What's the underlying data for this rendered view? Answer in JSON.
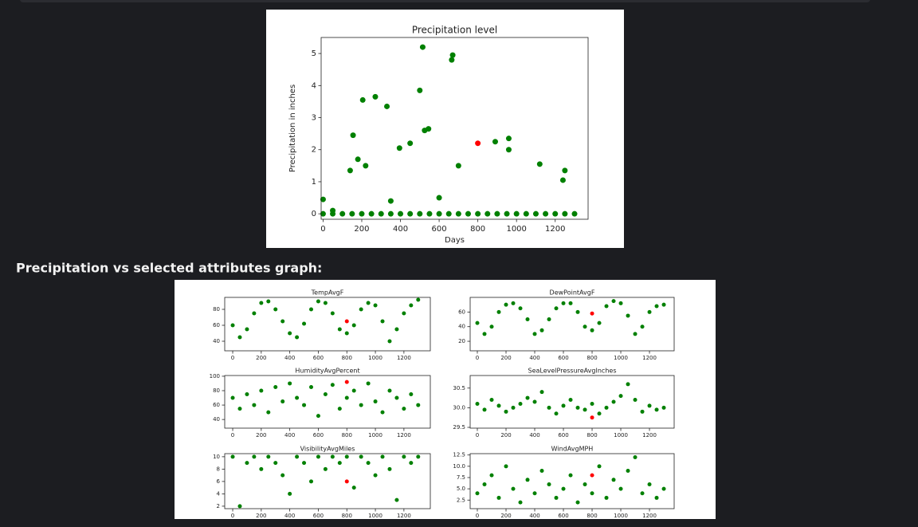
{
  "heading": "Precipitation vs selected attributes graph:",
  "chart_data": [
    {
      "type": "scatter",
      "title": "Precipitation level",
      "x_label": "Days",
      "y_label": "Precipitation in inches",
      "xlim": [
        -10,
        1370
      ],
      "ylim": [
        -0.17,
        5.5
      ],
      "xticks": [
        0,
        200,
        400,
        600,
        800,
        1000,
        1200
      ],
      "yticks": [
        0,
        1,
        2,
        3,
        4,
        5
      ],
      "series": [
        {
          "color": "#008000",
          "x": [
            0,
            140,
            155,
            205,
            270,
            330,
            395,
            450,
            500,
            515,
            525,
            545,
            670,
            665,
            890,
            960,
            960,
            1120,
            1240,
            1250,
            700,
            600,
            350,
            180,
            220,
            50,
            0,
            50,
            100,
            150,
            200,
            250,
            300,
            350,
            400,
            450,
            500,
            550,
            600,
            650,
            700,
            750,
            800,
            850,
            900,
            950,
            1000,
            1050,
            1100,
            1150,
            1200,
            1250,
            1300
          ],
          "values": [
            0.45,
            1.35,
            2.45,
            3.55,
            3.65,
            3.35,
            2.05,
            2.2,
            3.85,
            5.2,
            2.6,
            2.65,
            4.95,
            4.8,
            2.25,
            2.35,
            2.0,
            1.55,
            1.05,
            1.35,
            1.5,
            0.5,
            0.4,
            1.7,
            1.5,
            0.1,
            0,
            0,
            0,
            0,
            0,
            0,
            0,
            0,
            0,
            0,
            0,
            0,
            0,
            0,
            0,
            0,
            0,
            0,
            0,
            0,
            0,
            0,
            0,
            0,
            0,
            0,
            0
          ]
        },
        {
          "color": "#ff0000",
          "x": [
            800
          ],
          "values": [
            2.2
          ]
        }
      ]
    },
    {
      "type": "scatter",
      "title": "TempAvgF",
      "xlim": [
        -56,
        1385
      ],
      "ylim": [
        28,
        95
      ],
      "xticks": [
        0,
        200,
        400,
        600,
        800,
        1000,
        1200
      ],
      "yticks": [
        40,
        60,
        80
      ],
      "series": [
        {
          "color": "#008000",
          "x": [
            0,
            50,
            100,
            150,
            200,
            250,
            300,
            350,
            400,
            450,
            500,
            550,
            600,
            650,
            700,
            750,
            800,
            850,
            900,
            950,
            1000,
            1050,
            1100,
            1150,
            1200,
            1250,
            1300
          ],
          "values": [
            60,
            45,
            55,
            75,
            88,
            90,
            80,
            65,
            50,
            45,
            62,
            80,
            90,
            88,
            75,
            55,
            50,
            60,
            80,
            88,
            85,
            65,
            40,
            55,
            75,
            85,
            92
          ]
        },
        {
          "color": "#ff0000",
          "x": [
            800
          ],
          "values": [
            65
          ]
        }
      ]
    },
    {
      "type": "scatter",
      "title": "DewPointAvgF",
      "xlim": [
        -50,
        1372
      ],
      "ylim": [
        7,
        80
      ],
      "xticks": [
        0,
        200,
        400,
        600,
        800,
        1000,
        1200
      ],
      "yticks": [
        20,
        40,
        60
      ],
      "series": [
        {
          "color": "#008000",
          "x": [
            0,
            50,
            100,
            150,
            200,
            250,
            300,
            350,
            400,
            450,
            500,
            550,
            600,
            650,
            700,
            750,
            800,
            850,
            900,
            950,
            1000,
            1050,
            1100,
            1150,
            1200,
            1250,
            1300
          ],
          "values": [
            45,
            30,
            40,
            60,
            70,
            72,
            65,
            50,
            30,
            35,
            50,
            65,
            72,
            72,
            60,
            40,
            35,
            45,
            68,
            75,
            72,
            55,
            30,
            40,
            60,
            68,
            70
          ]
        },
        {
          "color": "#ff0000",
          "x": [
            800
          ],
          "values": [
            58
          ]
        }
      ]
    },
    {
      "type": "scatter",
      "title": "HumidityAvgPercent",
      "xlim": [
        -56,
        1385
      ],
      "ylim": [
        28,
        101
      ],
      "xticks": [
        0,
        200,
        400,
        600,
        800,
        1000,
        1200
      ],
      "yticks": [
        40,
        60,
        80,
        100
      ],
      "series": [
        {
          "color": "#008000",
          "x": [
            0,
            50,
            100,
            150,
            200,
            250,
            300,
            350,
            400,
            450,
            500,
            550,
            600,
            650,
            700,
            750,
            800,
            850,
            900,
            950,
            1000,
            1050,
            1100,
            1150,
            1200,
            1250,
            1300
          ],
          "values": [
            70,
            55,
            75,
            60,
            80,
            50,
            85,
            65,
            90,
            70,
            60,
            85,
            45,
            75,
            88,
            55,
            70,
            80,
            60,
            90,
            65,
            50,
            80,
            70,
            55,
            75,
            60
          ]
        },
        {
          "color": "#ff0000",
          "x": [
            800
          ],
          "values": [
            92
          ]
        }
      ]
    },
    {
      "type": "scatter",
      "title": "SeaLevelPressureAvgInches",
      "xlim": [
        -50,
        1372
      ],
      "ylim": [
        29.48,
        30.82
      ],
      "xticks": [
        0,
        200,
        400,
        600,
        800,
        1000,
        1200
      ],
      "yticks": [
        29.5,
        {
          "value": 30,
          "label": "30.0"
        },
        30.5
      ],
      "series": [
        {
          "color": "#008000",
          "x": [
            0,
            50,
            100,
            150,
            200,
            250,
            300,
            350,
            400,
            450,
            500,
            550,
            600,
            650,
            700,
            750,
            800,
            850,
            900,
            950,
            1000,
            1050,
            1100,
            1150,
            1200,
            1250,
            1300
          ],
          "values": [
            30.1,
            29.95,
            30.2,
            30.05,
            29.9,
            30.0,
            30.1,
            30.25,
            30.15,
            30.4,
            30.0,
            29.85,
            30.05,
            30.2,
            30.0,
            29.95,
            30.1,
            29.85,
            30.0,
            30.15,
            30.3,
            30.6,
            30.2,
            29.9,
            30.05,
            29.95,
            30.0
          ]
        },
        {
          "color": "#ff0000",
          "x": [
            800
          ],
          "values": [
            29.75
          ]
        }
      ]
    },
    {
      "type": "scatter",
      "title": "VisibilityAvgMiles",
      "xlim": [
        -56,
        1385
      ],
      "ylim": [
        1.6,
        10.5
      ],
      "xticks": [
        0,
        200,
        400,
        600,
        800,
        1000,
        1200
      ],
      "yticks": [
        2,
        4,
        6,
        8,
        10
      ],
      "series": [
        {
          "color": "#008000",
          "x": [
            0,
            50,
            100,
            150,
            200,
            250,
            300,
            350,
            400,
            450,
            500,
            550,
            600,
            650,
            700,
            750,
            800,
            850,
            900,
            950,
            1000,
            1050,
            1100,
            1150,
            1200,
            1250,
            1300
          ],
          "values": [
            10,
            2,
            9,
            10,
            8,
            10,
            9,
            7,
            4,
            10,
            9,
            6,
            10,
            8,
            10,
            9,
            10,
            5,
            10,
            9,
            7,
            10,
            8,
            3,
            10,
            9,
            10
          ]
        },
        {
          "color": "#ff0000",
          "x": [
            800
          ],
          "values": [
            6
          ]
        }
      ]
    },
    {
      "type": "scatter",
      "title": "WindAvgMPH",
      "xlim": [
        -50,
        1372
      ],
      "ylim": [
        0.6,
        12.8
      ],
      "xticks": [
        0,
        200,
        400,
        600,
        800,
        1000,
        1200
      ],
      "yticks": [
        2.5,
        {
          "value": 5,
          "label": "5.0"
        },
        7.5,
        {
          "value": 10,
          "label": "10.0"
        },
        12.5
      ],
      "series": [
        {
          "color": "#008000",
          "x": [
            0,
            50,
            100,
            150,
            200,
            250,
            300,
            350,
            400,
            450,
            500,
            550,
            600,
            650,
            700,
            750,
            800,
            850,
            900,
            950,
            1000,
            1050,
            1100,
            1150,
            1200,
            1250,
            1300
          ],
          "values": [
            4,
            6,
            8,
            3,
            10,
            5,
            2,
            7,
            4,
            9,
            6,
            3,
            5,
            8,
            2,
            6,
            4,
            10,
            3,
            7,
            5,
            9,
            12,
            4,
            6,
            3,
            5
          ]
        },
        {
          "color": "#ff0000",
          "x": [
            800
          ],
          "values": [
            8
          ]
        }
      ]
    }
  ]
}
